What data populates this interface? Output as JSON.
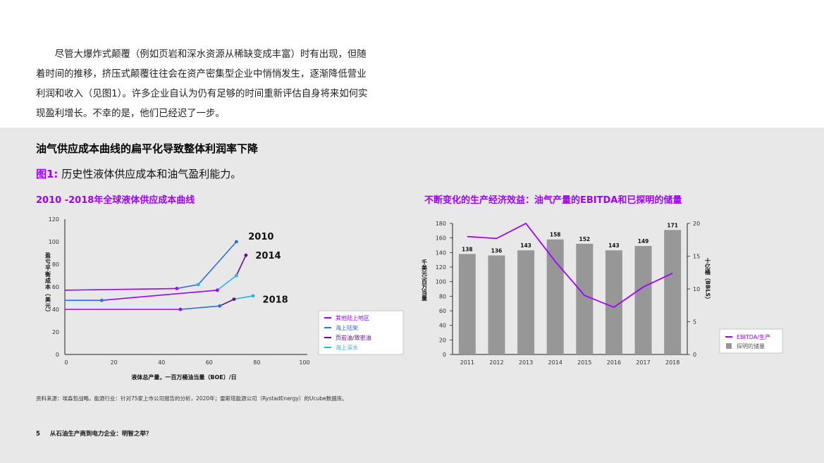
{
  "intro_text": "尽管大爆炸式颠覆（例如页岩和深水资源从稀缺变成丰富）时有出现，但随着时间的推移，挤压式颠覆往往会在资产密集型企业中悄悄发生，逐渐降低营业利润和收入（见图1）。许多企业自认为仍有足够的时间重新评估自身将来如何实现盈利增长。不幸的是，他们已经迟了一步。",
  "section_title": "油气供应成本曲线的扁平化导致整体利润率下降",
  "figure": {
    "label": "图1:",
    "caption": "历史性液体供应成本和油气盈利能力。"
  },
  "source": "资料来源：埃森哲战略，能源行业：针对75家上市公司报告的分析，2020年；雷斯塔能源公司（RystadEnergy）的Ucube数据库。",
  "footer": {
    "page_number": "5",
    "doc_title": "从石油生产商到电力企业：明智之举？"
  },
  "colors": {
    "other_land": "#a100ff",
    "offshore_shelf": "#2a6fdb",
    "shale": "#5c0f8b",
    "deepwater": "#1fb8e6",
    "ebitda": "#a100ff",
    "reserves_bar": "#979797"
  },
  "chart_data": [
    {
      "type": "line",
      "title": "2010 -2018年全球液体供应成本曲线",
      "xlabel": "液体总产量，一百万桶油当量（BOE）/日",
      "ylabel": "盈亏平衡成本（美元）",
      "xlim": [
        0,
        100
      ],
      "ylim": [
        0,
        120
      ],
      "xticks": [
        0,
        20,
        40,
        60,
        80,
        100
      ],
      "yticks": [
        0,
        20,
        40,
        60,
        80,
        100,
        120
      ],
      "legend_position": "bottom-right",
      "legend": [
        {
          "name": "其他陆上地区",
          "color_key": "other_land"
        },
        {
          "name": "海上陆架",
          "color_key": "offshore_shelf"
        },
        {
          "name": "页岩油/致密油",
          "color_key": "shale"
        },
        {
          "name": "海上深水",
          "color_key": "deepwater"
        }
      ],
      "curves": [
        {
          "label": "2010",
          "label_at": [
            77,
            105
          ],
          "segments": [
            {
              "color_key": "other_land",
              "points": [
                [
                  0,
                  57
                ],
                [
                  47,
                  58.5
                ]
              ]
            },
            {
              "color_key": "offshore_shelf",
              "points": [
                [
                  47,
                  58.5
                ],
                [
                  56,
                  62
                ],
                [
                  72,
                  100
                ]
              ]
            }
          ],
          "markers": [
            {
              "point": [
                47,
                58.5
              ],
              "color_key": "other_land"
            },
            {
              "point": [
                56,
                62
              ],
              "color_key": "deepwater"
            },
            {
              "point": [
                72,
                100
              ],
              "color_key": "offshore_shelf"
            }
          ]
        },
        {
          "label": "2014",
          "label_at": [
            80,
            88
          ],
          "segments": [
            {
              "color_key": "offshore_shelf",
              "points": [
                [
                  0,
                  48
                ],
                [
                  15.5,
                  48
                ]
              ]
            },
            {
              "color_key": "other_land",
              "points": [
                [
                  15.5,
                  48
                ],
                [
                  64,
                  57
                ]
              ]
            },
            {
              "color_key": "deepwater",
              "points": [
                [
                  64,
                  57
                ],
                [
                  72,
                  70
                ]
              ]
            },
            {
              "color_key": "shale",
              "points": [
                [
                  72,
                  70
                ],
                [
                  76,
                  88
                ]
              ]
            }
          ],
          "markers": [
            {
              "point": [
                15.5,
                48
              ],
              "color_key": "offshore_shelf"
            },
            {
              "point": [
                64,
                57
              ],
              "color_key": "other_land"
            },
            {
              "point": [
                72,
                70
              ],
              "color_key": "deepwater"
            },
            {
              "point": [
                76,
                88
              ],
              "color_key": "shale"
            }
          ]
        },
        {
          "label": "2018",
          "label_at": [
            83,
            49
          ],
          "segments": [
            {
              "color_key": "other_land",
              "points": [
                [
                  0,
                  40
                ],
                [
                  48.5,
                  40
                ]
              ]
            },
            {
              "color_key": "offshore_shelf",
              "points": [
                [
                  48.5,
                  40
                ],
                [
                  65,
                  43
                ]
              ]
            },
            {
              "color_key": "shale",
              "points": [
                [
                  65,
                  43
                ],
                [
                  71,
                  49
                ]
              ]
            },
            {
              "color_key": "deepwater",
              "points": [
                [
                  71,
                  49
                ],
                [
                  79,
                  52
                ]
              ]
            }
          ],
          "markers": [
            {
              "point": [
                48.5,
                40
              ],
              "color_key": "other_land"
            },
            {
              "point": [
                65,
                43
              ],
              "color_key": "offshore_shelf"
            },
            {
              "point": [
                71,
                49
              ],
              "color_key": "shale"
            },
            {
              "point": [
                79,
                52
              ],
              "color_key": "deepwater"
            }
          ]
        }
      ]
    },
    {
      "type": "bar",
      "title": "不断变化的生产经济效益：油气产量的EBITDA和已探明的储量",
      "categories": [
        "2011",
        "2012",
        "2013",
        "2014",
        "2015",
        "2016",
        "2017",
        "2018"
      ],
      "ylabel_left": "千美元/百万当量",
      "ylabel_right": "十亿桶（BBLS）",
      "ylim_left": [
        0,
        180
      ],
      "ylim_right": [
        0,
        20
      ],
      "yticks_left": [
        0,
        20,
        40,
        60,
        80,
        100,
        120,
        140,
        160,
        180
      ],
      "yticks_right": [
        0,
        5,
        10,
        15,
        20
      ],
      "legend_position": "right",
      "series": [
        {
          "name": "探明的储量",
          "type": "bar",
          "axis": "left",
          "color_key": "reserves_bar",
          "values": [
            138,
            136,
            143,
            158,
            152,
            143,
            149,
            171
          ]
        },
        {
          "name": "EBITDA/生产",
          "type": "line",
          "axis": "right",
          "color_key": "ebitda",
          "values": [
            18,
            17.7,
            20,
            14.2,
            9,
            7.2,
            10.3,
            12.4
          ]
        }
      ]
    }
  ]
}
